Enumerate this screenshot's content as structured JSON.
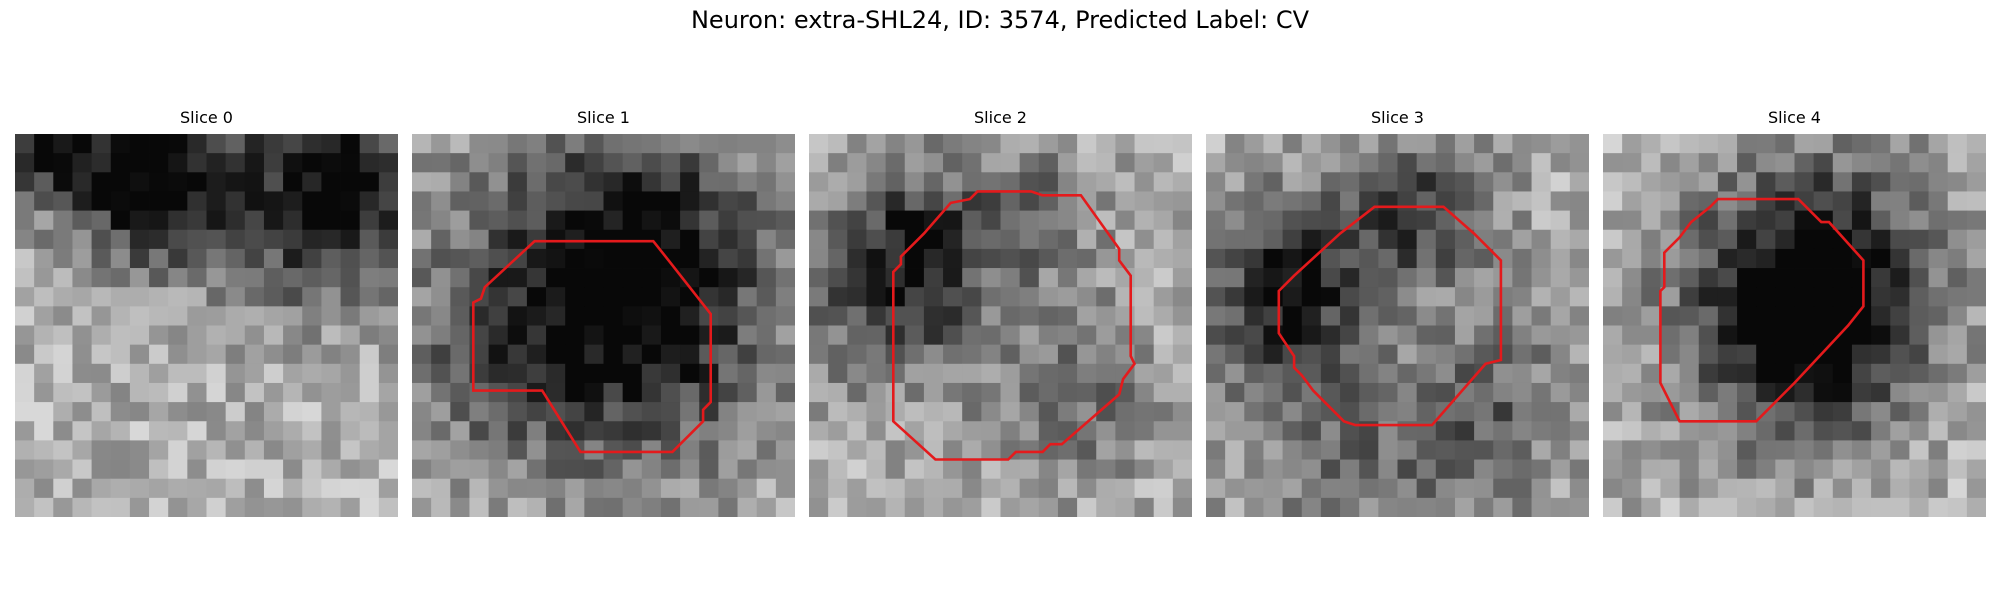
{
  "title": "Neuron: extra-SHL24, ID: 3574, Predicted Label: CV",
  "contour_color": "#e41a1c",
  "panels": [
    {
      "label": "Slice 0",
      "has_contour": false,
      "dark_spots": [
        [
          1.8,
          0.3,
          2.2,
          0.9
        ],
        [
          17,
          1.5,
          3.2,
          0.85
        ],
        [
          7,
          2.8,
          2.2,
          0.55
        ],
        [
          7,
          3.3,
          3.5,
          0.55
        ],
        [
          16,
          5.5,
          3.0,
          0.55
        ],
        [
          9.5,
          1.5,
          2.5,
          0.3
        ]
      ],
      "contour": []
    },
    {
      "label": "Slice 1",
      "has_contour": true,
      "dark_spots": [
        [
          12,
          6,
          4.5,
          0.75
        ],
        [
          8,
          9,
          6.5,
          0.45
        ],
        [
          13,
          12,
          4.5,
          0.35
        ],
        [
          5,
          12,
          3.5,
          0.25
        ]
      ],
      "contour": [
        [
          6.8,
          13.4
        ],
        [
          8.8,
          16.6
        ],
        [
          13.6,
          16.6
        ],
        [
          15.2,
          15
        ],
        [
          15.2,
          14.4
        ],
        [
          15.6,
          14.0
        ],
        [
          15.6,
          9.4
        ],
        [
          13.4,
          6.6
        ],
        [
          12.6,
          5.6
        ],
        [
          6.4,
          5.6
        ],
        [
          3.8,
          8.0
        ],
        [
          3.6,
          8.6
        ],
        [
          3.2,
          8.8
        ],
        [
          3.2,
          13.4
        ]
      ]
    },
    {
      "label": "Slice 2",
      "has_contour": true,
      "dark_spots": [
        [
          5.5,
          5.5,
          2.8,
          0.65
        ],
        [
          4,
          9,
          3,
          0.5
        ],
        [
          12,
          4,
          2.5,
          0.35
        ],
        [
          14,
          14,
          3,
          0.35
        ],
        [
          9,
          10,
          6,
          0.12
        ]
      ],
      "contour": [
        [
          4.4,
          15.0
        ],
        [
          6.6,
          17.0
        ],
        [
          10.4,
          17.0
        ],
        [
          10.8,
          16.6
        ],
        [
          12.2,
          16.6
        ],
        [
          12.6,
          16.2
        ],
        [
          13.2,
          16.2
        ],
        [
          16.2,
          13.6
        ],
        [
          16.4,
          12.8
        ],
        [
          17.0,
          12.0
        ],
        [
          16.8,
          11.6
        ],
        [
          16.8,
          7.4
        ],
        [
          16.2,
          6.6
        ],
        [
          16.2,
          6.0
        ],
        [
          14.2,
          3.2
        ],
        [
          12.2,
          3.2
        ],
        [
          11.6,
          3.0
        ],
        [
          8.8,
          3.0
        ],
        [
          8.4,
          3.4
        ],
        [
          7.4,
          3.6
        ],
        [
          6.0,
          5.2
        ],
        [
          4.8,
          6.4
        ],
        [
          4.8,
          6.8
        ],
        [
          4.4,
          7.2
        ]
      ]
    },
    {
      "label": "Slice 3",
      "has_contour": true,
      "dark_spots": [
        [
          11.5,
          4.2,
          2.8,
          0.75
        ],
        [
          5,
          6.5,
          2.8,
          0.65
        ],
        [
          4,
          10,
          3,
          0.5
        ],
        [
          9,
          16,
          5,
          0.45
        ],
        [
          15,
          14,
          3,
          0.4
        ],
        [
          9.5,
          10,
          4,
          -0.2
        ]
      ],
      "contour": [
        [
          3.8,
          10.4
        ],
        [
          4.6,
          11.6
        ],
        [
          4.6,
          12.2
        ],
        [
          5.0,
          12.6
        ],
        [
          5.6,
          13.4
        ],
        [
          7.2,
          15.0
        ],
        [
          7.8,
          15.2
        ],
        [
          11.8,
          15.2
        ],
        [
          14.6,
          12.0
        ],
        [
          15.4,
          11.8
        ],
        [
          15.4,
          6.6
        ],
        [
          14.0,
          5.2
        ],
        [
          12.4,
          3.8
        ],
        [
          8.8,
          3.8
        ],
        [
          7.0,
          5.2
        ],
        [
          4.6,
          7.4
        ],
        [
          3.8,
          8.2
        ]
      ]
    },
    {
      "label": "Slice 4",
      "has_contour": true,
      "dark_spots": [
        [
          9.5,
          8.5,
          4.2,
          0.85
        ],
        [
          11,
          12,
          3.5,
          0.55
        ],
        [
          12.5,
          5,
          3.5,
          0.4
        ],
        [
          16,
          9,
          3,
          0.15
        ]
      ],
      "contour": [
        [
          4.0,
          15.0
        ],
        [
          8.0,
          15.0
        ],
        [
          10.0,
          13.0
        ],
        [
          12.8,
          10.0
        ],
        [
          13.6,
          9.0
        ],
        [
          13.6,
          6.6
        ],
        [
          11.8,
          4.6
        ],
        [
          11.4,
          4.6
        ],
        [
          10.2,
          3.4
        ],
        [
          6.0,
          3.4
        ],
        [
          5.6,
          3.8
        ],
        [
          4.6,
          4.6
        ],
        [
          4.0,
          5.4
        ],
        [
          3.2,
          6.2
        ],
        [
          3.2,
          8.0
        ],
        [
          3.0,
          8.2
        ],
        [
          3.0,
          13.0
        ]
      ]
    }
  ]
}
